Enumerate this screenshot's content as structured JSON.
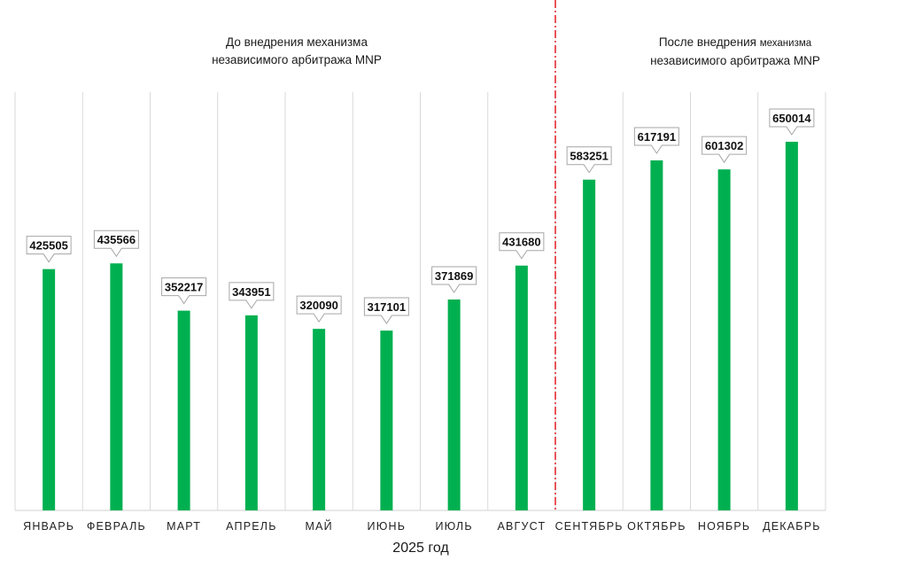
{
  "annotations": {
    "before_line1": "До внедрения механизма",
    "before_line2": "независимого арбитража MNP",
    "after_line1_a": "После внедрения",
    "after_line1_b": "механизма",
    "after_line2": "независимого арбитража MNP"
  },
  "chart_data": {
    "type": "bar",
    "xlabel": "2025 год",
    "ylabel": "",
    "ylim": [
      0,
      900000
    ],
    "grid": "vertical separators",
    "colors": {
      "bar": "#00b050",
      "divider": "#e31b23",
      "grid": "#d9d9d9"
    },
    "categories": [
      "ЯНВАРЬ",
      "ФЕВРАЛЬ",
      "МАРТ",
      "АПРЕЛЬ",
      "МАЙ",
      "ИЮНЬ",
      "ИЮЛЬ",
      "АВГУСТ",
      "СЕНТЯБРЬ",
      "ОКТЯБРЬ",
      "НОЯБРЬ",
      "ДЕКАБРЬ"
    ],
    "values": [
      425505,
      435566,
      352217,
      343951,
      320090,
      317101,
      371869,
      431680,
      583251,
      617191,
      601302,
      650014
    ],
    "divider_after_category": "АВГУСТ"
  }
}
